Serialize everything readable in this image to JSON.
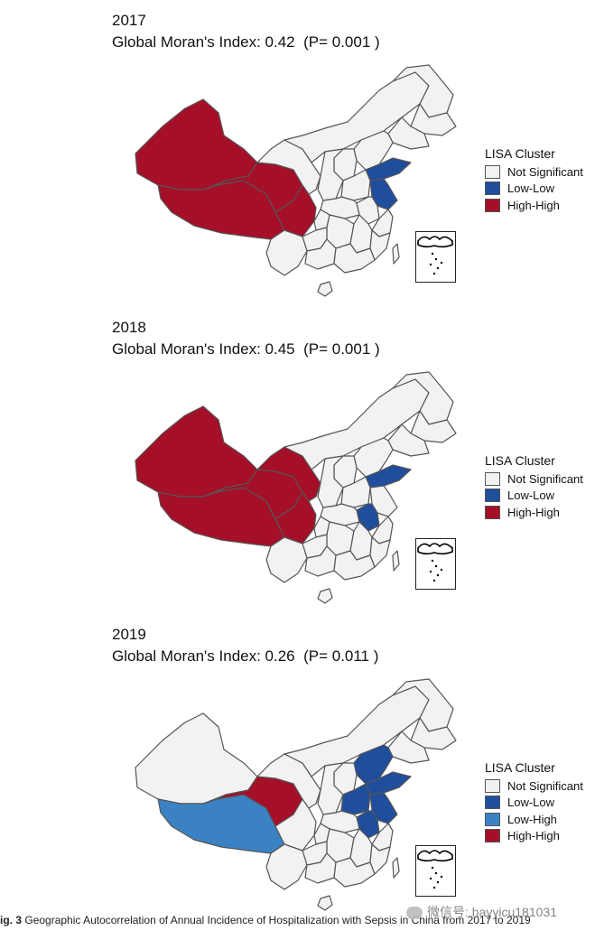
{
  "colors": {
    "not_significant": "#f2f2f2",
    "low_low": "#1f4e9c",
    "low_high": "#3b82c4",
    "high_high": "#a50f28",
    "border": "#555555"
  },
  "legend_title": "LISA Cluster",
  "panels": [
    {
      "year": "2017",
      "moran": "Global Moran's Index: 0.42  (P= 0.001 )",
      "legend": [
        "Not Significant",
        "Low-Low",
        "High-High"
      ],
      "legend_keys": [
        "not_significant",
        "low_low",
        "high_high"
      ],
      "regions": {
        "xinjiang": "high_high",
        "tibet": "high_high",
        "qinghai": "high_high",
        "sichuan": "high_high",
        "gansu": "not_significant",
        "neimenggu": "not_significant",
        "shandong": "low_low",
        "jiangsu": "low_low",
        "anhui": "not_significant",
        "hebei": "not_significant",
        "henan": "not_significant"
      }
    },
    {
      "year": "2018",
      "moran": "Global Moran's Index: 0.45  (P= 0.001 )",
      "legend": [
        "Not Significant",
        "Low-Low",
        "High-High"
      ],
      "legend_keys": [
        "not_significant",
        "low_low",
        "high_high"
      ],
      "regions": {
        "xinjiang": "high_high",
        "tibet": "high_high",
        "qinghai": "high_high",
        "sichuan": "high_high",
        "gansu": "high_high",
        "neimenggu": "not_significant",
        "shandong": "low_low",
        "jiangsu": "not_significant",
        "anhui": "low_low",
        "hebei": "not_significant",
        "henan": "not_significant"
      }
    },
    {
      "year": "2019",
      "moran": "Global Moran's Index: 0.26  (P= 0.011 )",
      "legend": [
        "Not Significant",
        "Low-Low",
        "Low-High",
        "High-High"
      ],
      "legend_keys": [
        "not_significant",
        "low_low",
        "low_high",
        "high_high"
      ],
      "regions": {
        "xinjiang": "not_significant",
        "tibet": "low_high",
        "qinghai": "high_high",
        "sichuan": "not_significant",
        "gansu": "not_significant",
        "neimenggu": "not_significant",
        "shandong": "low_low",
        "jiangsu": "low_low",
        "anhui": "low_low",
        "hebei": "low_low",
        "henan": "low_low"
      }
    }
  ],
  "caption_prefix": "ig. 3",
  "caption_text": "Geographic Autocorrelation of Annual Incidence of Hospitalization with Sepsis in China from 2017 to 2019",
  "watermark": "微信号: hayyicu181031"
}
